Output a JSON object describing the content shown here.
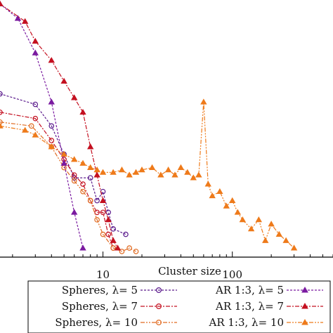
{
  "chart_data": {
    "type": "line",
    "xlabel": "Cluster size",
    "ylabel": "",
    "x_scale": "log",
    "y_scale": "log",
    "xlim": [
      1.6,
      600
    ],
    "ylim": [
      0.002,
      1.1
    ],
    "x_tick_labels": [
      {
        "value": 10,
        "label": "10"
      },
      {
        "value": 100,
        "label": "100"
      }
    ],
    "grid": false,
    "legend_position": "bottom",
    "series": [
      {
        "name": "Spheres, λ= 5",
        "color": "#5a1a8c",
        "marker": "circle",
        "dash": "3,2",
        "x": [
          1.6,
          3,
          4,
          5,
          6,
          8,
          9,
          10,
          11,
          12,
          15
        ],
        "y": [
          0.11,
          0.085,
          0.05,
          0.025,
          0.014,
          0.014,
          0.008,
          0.01,
          0.006,
          0.004,
          0.0035
        ]
      },
      {
        "name": "Spheres, λ= 7",
        "color": "#c41020",
        "marker": "circle",
        "dash": "6,2,2,2",
        "x": [
          1.6,
          3,
          4,
          5,
          6,
          7,
          8,
          9,
          10,
          11,
          12
        ],
        "y": [
          0.07,
          0.06,
          0.035,
          0.022,
          0.015,
          0.012,
          0.008,
          0.006,
          0.006,
          0.0035,
          0.0025
        ]
      },
      {
        "name": "Spheres, λ= 10",
        "color": "#e06a20",
        "marker": "circle",
        "dash": "6,2,2,2,2,2",
        "x": [
          1.6,
          2.8,
          4,
          5,
          6,
          7,
          8,
          9,
          10,
          12,
          14,
          16,
          18
        ],
        "y": [
          0.055,
          0.05,
          0.03,
          0.018,
          0.013,
          0.01,
          0.008,
          0.005,
          0.0035,
          0.0025,
          0.0023,
          0.0025,
          0.0023
        ]
      },
      {
        "name": "AR 1:3, λ= 5",
        "color": "#7a1aa0",
        "marker": "triangle",
        "dash": "3,2",
        "x": [
          1.6,
          2.2,
          3,
          4,
          5,
          6,
          7
        ],
        "y": [
          1.0,
          0.7,
          0.3,
          0.09,
          0.02,
          0.006,
          0.0025
        ]
      },
      {
        "name": "AR 1:3, λ= 7",
        "color": "#c41020",
        "marker": "triangle",
        "dash": "6,2,2,2",
        "x": [
          1.6,
          2.5,
          3,
          4,
          5,
          6,
          7,
          8,
          9,
          10,
          11,
          12,
          13
        ],
        "y": [
          1.0,
          0.65,
          0.4,
          0.25,
          0.15,
          0.1,
          0.07,
          0.03,
          0.015,
          0.008,
          0.005,
          0.003,
          0.0025
        ]
      },
      {
        "name": "AR 1:3, λ= 10",
        "color": "#ee7a1a",
        "marker": "triangle",
        "dash": "6,2,2,2,2,2",
        "x": [
          1.6,
          2.5,
          3,
          4,
          5,
          6,
          7,
          8,
          9,
          10,
          12,
          14,
          16,
          18,
          20,
          24,
          28,
          32,
          36,
          40,
          45,
          50,
          55,
          60,
          65,
          70,
          80,
          90,
          100,
          110,
          120,
          140,
          160,
          180,
          200,
          230,
          260,
          300
        ],
        "y": [
          0.05,
          0.045,
          0.04,
          0.03,
          0.025,
          0.022,
          0.02,
          0.018,
          0.017,
          0.016,
          0.016,
          0.017,
          0.015,
          0.016,
          0.017,
          0.018,
          0.015,
          0.017,
          0.015,
          0.018,
          0.016,
          0.014,
          0.015,
          0.09,
          0.012,
          0.009,
          0.01,
          0.007,
          0.008,
          0.006,
          0.005,
          0.004,
          0.005,
          0.003,
          0.0045,
          0.0035,
          0.003,
          0.0025
        ]
      }
    ]
  }
}
